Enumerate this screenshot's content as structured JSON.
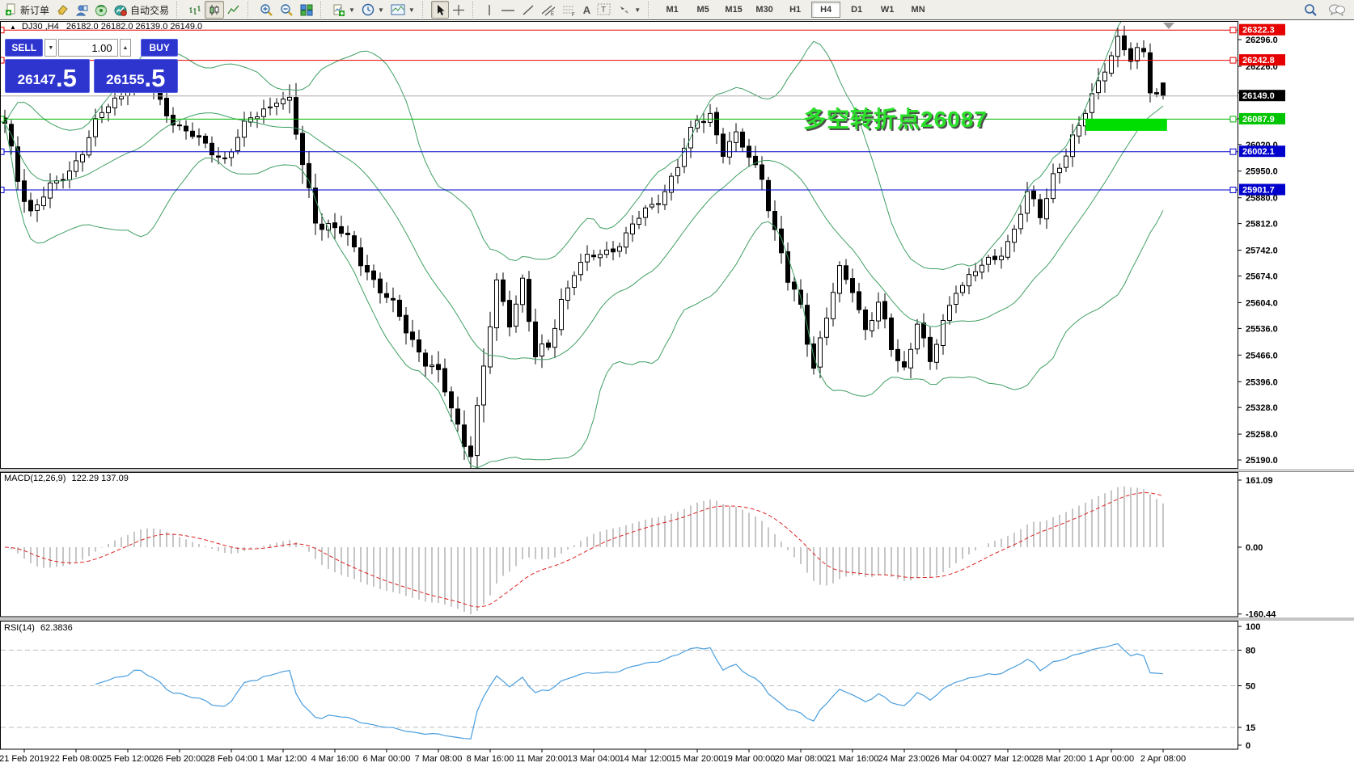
{
  "toolbar": {
    "new_order_label": "新订单",
    "auto_trading_label": "自动交易",
    "text_tool_label": "A",
    "label_tool_label": "T",
    "timeframes": [
      "M1",
      "M5",
      "M15",
      "M30",
      "H1",
      "H4",
      "D1",
      "W1",
      "MN"
    ],
    "active_timeframe": "H4"
  },
  "chart": {
    "symbol_info": {
      "symbol": "DJ30 ,H4",
      "values": "26182.0 26182.0 26139.0 26149.0"
    },
    "annotation": {
      "text": "多空转折点26087",
      "color": "#2ae02a"
    },
    "hlines": [
      {
        "price": 26322.3,
        "label": "26322.3",
        "color": "#e60000",
        "tag": "#e60000"
      },
      {
        "price": 26242.8,
        "label": "26242.8",
        "color": "#e60000",
        "tag": "#e60000"
      },
      {
        "price": 26149.0,
        "label": "26149.0",
        "color": "#a8a8a8",
        "tag": "#000000",
        "current": true
      },
      {
        "price": 26087.9,
        "label": "26087.9",
        "color": "#00b400",
        "tag": "#00c400"
      },
      {
        "price": 26002.1,
        "label": "26002.1",
        "color": "#0000cc",
        "tag": "#0000cc"
      },
      {
        "price": 25901.7,
        "label": "25901.7",
        "color": "#0000cc",
        "tag": "#0000cc"
      }
    ],
    "highlight_rect": {
      "bar_start": 167,
      "bar_end": 179.6,
      "price_top": 26087.9,
      "price_bottom": 26056,
      "color": "#00dd00"
    },
    "price_ticks": [
      26296.0,
      26226.0,
      26156.0,
      26088.0,
      26020.0,
      25950.0,
      25880.0,
      25812.0,
      25742.0,
      25674.0,
      25604.0,
      25536.0,
      25466.0,
      25396.0,
      25328.0,
      25258.0,
      25190.0
    ]
  },
  "macd": {
    "title": "MACD(12,26,9)",
    "values": "122.29 137.09",
    "axis": [
      "161.09",
      "0.00",
      "-160.44"
    ],
    "hist_color": "#c6c6c6",
    "signal_color": "#dd2222"
  },
  "rsi": {
    "title": "RSI(14)",
    "value": "62.3836",
    "axis": [
      "100",
      "80",
      "50",
      "15",
      "0"
    ],
    "levels": [
      80,
      50,
      15
    ],
    "line_color": "#4a9ede"
  },
  "trade_panel": {
    "sell_label": "SELL",
    "buy_label": "BUY",
    "volume": "1.00",
    "sell_int": "26147",
    "sell_frac": ".5",
    "buy_int": "26155",
    "buy_frac": ".5"
  },
  "time_axis": [
    "21 Feb 2019",
    "22 Feb 08:00",
    "25 Feb 12:00",
    "26 Feb 20:00",
    "28 Feb 04:00",
    "1 Mar 12:00",
    "4 Mar 16:00",
    "6 Mar 00:00",
    "7 Mar 08:00",
    "8 Mar 16:00",
    "11 Mar 20:00",
    "13 Mar 04:00",
    "14 Mar 12:00",
    "15 Mar 20:00",
    "19 Mar 00:00",
    "20 Mar 08:00",
    "21 Mar 16:00",
    "24 Mar 23:00",
    "26 Mar 04:00",
    "27 Mar 12:00",
    "28 Mar 20:00",
    "1 Apr 00:00",
    "2 Apr 08:00"
  ],
  "chart_data": {
    "type": "candlestick",
    "symbol": "DJ30",
    "timeframe": "H4",
    "bars": 180,
    "y_axis_range": [
      25169,
      26345
    ],
    "ohlc_last": {
      "open": 26182.0,
      "high": 26182.0,
      "low": 26139.0,
      "close": 26149.0
    },
    "price_anchors": [
      [
        0,
        26060,
        50
      ],
      [
        2,
        25940,
        55
      ],
      [
        4,
        25850,
        55
      ],
      [
        8,
        25910,
        45
      ],
      [
        12,
        26010,
        45
      ],
      [
        16,
        26120,
        45
      ],
      [
        20,
        26200,
        45
      ],
      [
        22,
        26170,
        40
      ],
      [
        26,
        26090,
        40
      ],
      [
        30,
        26020,
        40
      ],
      [
        34,
        25990,
        40
      ],
      [
        38,
        26080,
        45
      ],
      [
        42,
        26150,
        45
      ],
      [
        44,
        26120,
        60
      ],
      [
        46,
        25950,
        90
      ],
      [
        48,
        25840,
        65
      ],
      [
        52,
        25780,
        50
      ],
      [
        56,
        25700,
        50
      ],
      [
        60,
        25580,
        55
      ],
      [
        64,
        25490,
        55
      ],
      [
        67,
        25400,
        60
      ],
      [
        70,
        25280,
        65
      ],
      [
        72,
        25230,
        70
      ],
      [
        74,
        25420,
        85
      ],
      [
        76,
        25640,
        60
      ],
      [
        78,
        25560,
        45
      ],
      [
        80,
        25670,
        45
      ],
      [
        82,
        25450,
        60
      ],
      [
        84,
        25480,
        50
      ],
      [
        86,
        25620,
        50
      ],
      [
        88,
        25690,
        45
      ],
      [
        92,
        25730,
        40
      ],
      [
        96,
        25780,
        40
      ],
      [
        100,
        25860,
        40
      ],
      [
        104,
        25960,
        45
      ],
      [
        107,
        26080,
        50
      ],
      [
        109,
        26110,
        45
      ],
      [
        111,
        26000,
        45
      ],
      [
        113,
        26030,
        45
      ],
      [
        115,
        25990,
        45
      ],
      [
        117,
        25950,
        50
      ],
      [
        119,
        25780,
        60
      ],
      [
        121,
        25650,
        60
      ],
      [
        123,
        25600,
        55
      ],
      [
        125,
        25450,
        60
      ],
      [
        127,
        25560,
        50
      ],
      [
        129,
        25680,
        45
      ],
      [
        131,
        25650,
        45
      ],
      [
        133,
        25540,
        50
      ],
      [
        135,
        25590,
        45
      ],
      [
        137,
        25480,
        55
      ],
      [
        139,
        25440,
        50
      ],
      [
        141,
        25560,
        45
      ],
      [
        143,
        25430,
        50
      ],
      [
        145,
        25550,
        45
      ],
      [
        147,
        25650,
        40
      ],
      [
        150,
        25680,
        40
      ],
      [
        153,
        25720,
        40
      ],
      [
        156,
        25800,
        45
      ],
      [
        158,
        25880,
        45
      ],
      [
        160,
        25830,
        45
      ],
      [
        162,
        25950,
        50
      ],
      [
        164,
        26000,
        50
      ],
      [
        166,
        26050,
        50
      ],
      [
        168,
        26150,
        60
      ],
      [
        170,
        26240,
        55
      ],
      [
        172,
        26290,
        50
      ],
      [
        174,
        26230,
        45
      ],
      [
        175,
        26260,
        45
      ],
      [
        176,
        26270,
        40
      ],
      [
        177,
        26180,
        45
      ],
      [
        178,
        26160,
        40
      ],
      [
        179,
        26149,
        35
      ]
    ],
    "indicators": [
      {
        "name": "Bollinger Bands",
        "period": 20,
        "deviation": 2,
        "color": "#3f9e63"
      },
      {
        "name": "MACD",
        "fast": 12,
        "slow": 26,
        "signal": 9,
        "axis_max": 161.09,
        "axis_min": -160.44
      },
      {
        "name": "RSI",
        "period": 14,
        "current": 62.3836
      }
    ]
  }
}
